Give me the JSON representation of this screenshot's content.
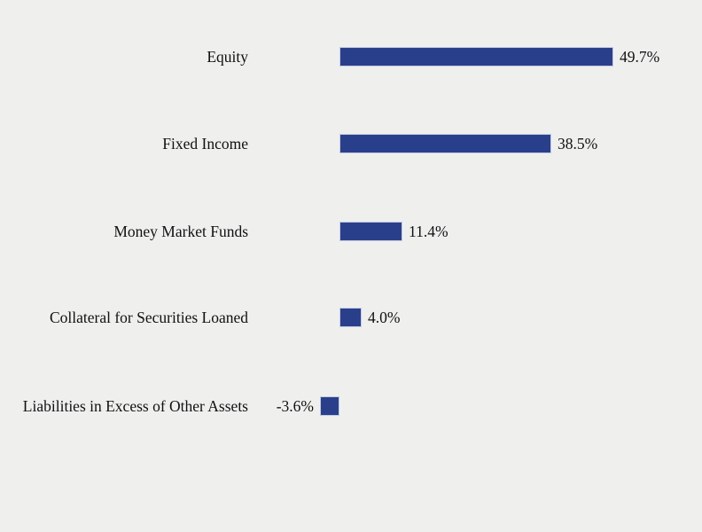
{
  "chart_data": {
    "type": "bar",
    "orientation": "horizontal",
    "title": "",
    "xlabel": "",
    "ylabel": "",
    "legend": null,
    "grid": false,
    "axis_visible": false,
    "bar_color": "#2a3f8c",
    "bar_border_color": "#c4cade",
    "background_color": "#efefee",
    "categories": [
      "Equity",
      "Fixed Income",
      "Money Market Funds",
      "Collateral for Securities Loaned",
      "Liabilities in Excess of Other Assets"
    ],
    "values": [
      49.7,
      38.5,
      11.4,
      4.0,
      -3.6
    ],
    "value_suffix": "%",
    "xlim": [
      -5,
      55
    ],
    "rows": [
      {
        "label": "Equity",
        "value": 49.7,
        "value_label": "49.7%"
      },
      {
        "label": "Fixed Income",
        "value": 38.5,
        "value_label": "38.5%"
      },
      {
        "label": "Money Market Funds",
        "value": 11.4,
        "value_label": "11.4%"
      },
      {
        "label": "Collateral for Securities Loaned",
        "value": 4.0,
        "value_label": "4.0%"
      },
      {
        "label": "Liabilities in Excess of Other Assets",
        "value": -3.6,
        "value_label": "-3.6%"
      }
    ]
  }
}
